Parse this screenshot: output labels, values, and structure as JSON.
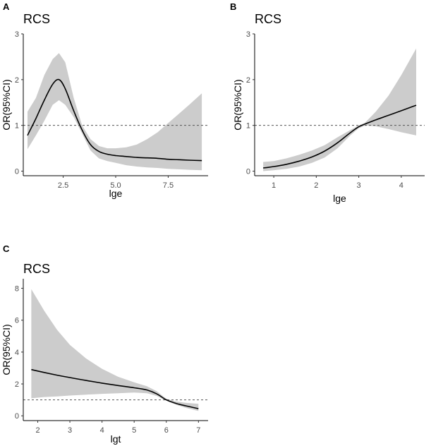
{
  "chart_data": [
    {
      "panel_label": "A",
      "type": "line",
      "title": "RCS",
      "xlabel": "lge",
      "ylabel": "OR(95%CI)",
      "xlim": [
        0.6,
        9.4
      ],
      "ylim": [
        -0.1,
        3.0
      ],
      "xticks": [
        2.5,
        5.0,
        7.5
      ],
      "xtick_labels": [
        "2.5",
        "5.0",
        "7.5"
      ],
      "yticks": [
        0,
        1,
        2,
        3
      ],
      "ytick_labels": [
        "0",
        "1",
        "2",
        "3"
      ],
      "reference_line": 1,
      "grid": false,
      "x": [
        0.8,
        1.2,
        1.6,
        2.0,
        2.3,
        2.6,
        3.0,
        3.4,
        3.8,
        4.2,
        4.6,
        5.0,
        5.5,
        6.0,
        6.5,
        7.0,
        7.5,
        8.0,
        8.5,
        9.1
      ],
      "y": [
        0.78,
        1.15,
        1.55,
        1.9,
        2.0,
        1.8,
        1.32,
        0.9,
        0.58,
        0.43,
        0.37,
        0.34,
        0.32,
        0.3,
        0.29,
        0.28,
        0.26,
        0.25,
        0.24,
        0.23
      ],
      "lower": [
        0.48,
        0.78,
        1.1,
        1.45,
        1.55,
        1.45,
        1.18,
        0.82,
        0.45,
        0.28,
        0.22,
        0.18,
        0.13,
        0.1,
        0.08,
        0.07,
        0.05,
        0.04,
        0.03,
        0.02
      ],
      "upper": [
        1.3,
        1.6,
        2.1,
        2.45,
        2.58,
        2.38,
        1.6,
        1.0,
        0.7,
        0.55,
        0.5,
        0.5,
        0.52,
        0.58,
        0.7,
        0.85,
        1.05,
        1.25,
        1.45,
        1.7
      ]
    },
    {
      "panel_label": "B",
      "type": "line",
      "title": "RCS",
      "xlabel": "lge",
      "ylabel": "OR(95%CI)",
      "xlim": [
        0.55,
        4.55
      ],
      "ylim": [
        -0.1,
        3.0
      ],
      "xticks": [
        1,
        2,
        3,
        4
      ],
      "xtick_labels": [
        "1",
        "2",
        "3",
        "4"
      ],
      "yticks": [
        0,
        1,
        2,
        3
      ],
      "ytick_labels": [
        "0",
        "1",
        "2",
        "3"
      ],
      "reference_line": 1,
      "grid": false,
      "x": [
        0.75,
        1.0,
        1.3,
        1.6,
        1.9,
        2.2,
        2.5,
        2.8,
        3.0,
        3.15,
        3.4,
        3.7,
        4.0,
        4.35
      ],
      "y": [
        0.07,
        0.1,
        0.15,
        0.22,
        0.31,
        0.44,
        0.62,
        0.84,
        0.97,
        1.03,
        1.12,
        1.22,
        1.32,
        1.44
      ],
      "lower": [
        0.0,
        0.02,
        0.05,
        0.1,
        0.18,
        0.3,
        0.5,
        0.78,
        0.94,
        1.0,
        0.98,
        0.92,
        0.85,
        0.78
      ],
      "upper": [
        0.2,
        0.22,
        0.28,
        0.36,
        0.45,
        0.57,
        0.74,
        0.9,
        1.0,
        1.06,
        1.3,
        1.65,
        2.1,
        2.68
      ]
    },
    {
      "panel_label": "C",
      "type": "line",
      "title": "RCS",
      "xlabel": "lgt",
      "ylabel": "OR(95%CI)",
      "xlim": [
        1.55,
        7.3
      ],
      "ylim": [
        -0.3,
        8.6
      ],
      "xticks": [
        2,
        3,
        4,
        5,
        6,
        7
      ],
      "xtick_labels": [
        "2",
        "3",
        "4",
        "5",
        "6",
        "7"
      ],
      "yticks": [
        0,
        2,
        4,
        6,
        8
      ],
      "ytick_labels": [
        "0",
        "2",
        "4",
        "6",
        "8"
      ],
      "reference_line": 1,
      "grid": false,
      "x": [
        1.8,
        2.2,
        2.6,
        3.0,
        3.5,
        4.0,
        4.5,
        5.0,
        5.4,
        5.7,
        6.0,
        6.3,
        6.6,
        7.0
      ],
      "y": [
        2.9,
        2.72,
        2.55,
        2.4,
        2.22,
        2.05,
        1.9,
        1.76,
        1.62,
        1.38,
        1.0,
        0.78,
        0.63,
        0.45
      ],
      "lower": [
        1.1,
        1.18,
        1.22,
        1.27,
        1.33,
        1.38,
        1.42,
        1.46,
        1.42,
        1.25,
        0.95,
        0.7,
        0.5,
        0.3
      ],
      "upper": [
        7.95,
        6.6,
        5.4,
        4.45,
        3.6,
        2.95,
        2.45,
        2.1,
        1.85,
        1.55,
        1.06,
        0.9,
        0.82,
        0.75
      ]
    }
  ]
}
